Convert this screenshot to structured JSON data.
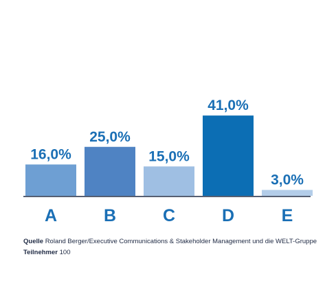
{
  "chart_data": {
    "type": "bar",
    "categories": [
      "A",
      "B",
      "C",
      "D",
      "E"
    ],
    "values": [
      16.0,
      25.0,
      15.0,
      41.0,
      3.0
    ],
    "value_labels": [
      "16,0%",
      "25,0%",
      "15,0%",
      "41,0%",
      "3,0%"
    ],
    "colors": [
      "#6e9fd3",
      "#4f83c3",
      "#9fbfe3",
      "#0c6eb4",
      "#b3cde9"
    ],
    "baseline_color": "#1f2a44",
    "title": "",
    "xlabel": "",
    "ylabel": ""
  },
  "footer": {
    "source_label": "Quelle",
    "source_text": "Roland Berger/Executive Communications & Stakeholder Management und die WELT-Gruppe",
    "participants_label": "Teilnehmer",
    "participants_value": "100"
  }
}
